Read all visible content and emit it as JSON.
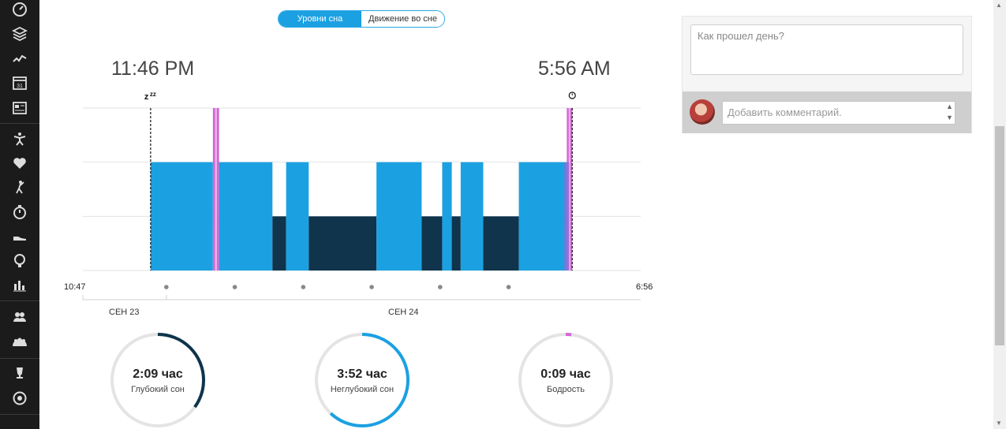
{
  "sidebar": {
    "icons": [
      "dashboard-icon",
      "layers-icon",
      "activity-icon",
      "calendar-icon",
      "news-icon",
      "fitness-icon",
      "heart-icon",
      "golf-icon",
      "timer-icon",
      "shoe-icon",
      "insights-icon",
      "reports-icon",
      "friends-icon",
      "groups-icon",
      "trophy-icon",
      "target-icon"
    ],
    "calendar_day": "31"
  },
  "toggle": {
    "active_label": "Уровни сна",
    "inactive_label": "Движение во сне"
  },
  "sleep_start": "11:46 PM",
  "sleep_end": "5:56 AM",
  "chart_data": {
    "type": "bar",
    "title": "",
    "x_range_labels": [
      "10:47",
      "6:56"
    ],
    "x_range_hours": [
      22.78,
      30.93
    ],
    "levels": [
      "Глубокий сон",
      "Неглубокий сон",
      "Бодрость"
    ],
    "colors": {
      "deep": "#0f344c",
      "light": "#1ba1e2",
      "awake": "#d466d6",
      "marker": "#8b6fd6"
    },
    "segments": [
      {
        "start": 23.77,
        "end": 24.68,
        "level": "light"
      },
      {
        "start": 24.68,
        "end": 24.77,
        "level": "awake"
      },
      {
        "start": 24.77,
        "end": 25.55,
        "level": "light"
      },
      {
        "start": 25.55,
        "end": 25.75,
        "level": "deep"
      },
      {
        "start": 25.75,
        "end": 26.08,
        "level": "light"
      },
      {
        "start": 26.08,
        "end": 27.07,
        "level": "deep"
      },
      {
        "start": 27.07,
        "end": 27.73,
        "level": "light"
      },
      {
        "start": 27.73,
        "end": 28.03,
        "level": "deep"
      },
      {
        "start": 28.03,
        "end": 28.17,
        "level": "light"
      },
      {
        "start": 28.17,
        "end": 28.3,
        "level": "deep"
      },
      {
        "start": 28.3,
        "end": 28.63,
        "level": "light"
      },
      {
        "start": 28.63,
        "end": 29.15,
        "level": "deep"
      },
      {
        "start": 29.15,
        "end": 29.85,
        "level": "light"
      },
      {
        "start": 29.85,
        "end": 29.93,
        "level": "awake"
      }
    ],
    "dates": [
      {
        "label": "СЕН 23",
        "hour": 23.5
      },
      {
        "label": "СЕН 24",
        "hour": 27.0
      }
    ],
    "tick_dots_hours": [
      24,
      25,
      26,
      27,
      28,
      29
    ]
  },
  "stats": [
    {
      "value": "2:09 час",
      "label": "Глубокий сон",
      "fraction": 0.35,
      "color": "#0f344c"
    },
    {
      "value": "3:52 час",
      "label": "Неглубокий сон",
      "fraction": 0.62,
      "color": "#1ba1e2"
    },
    {
      "value": "0:09 час",
      "label": "Бодрость",
      "fraction": 0.02,
      "color": "#d466d6"
    }
  ],
  "right_panel": {
    "day_placeholder": "Как прошел день?",
    "comment_placeholder": "Добавить комментарий."
  }
}
